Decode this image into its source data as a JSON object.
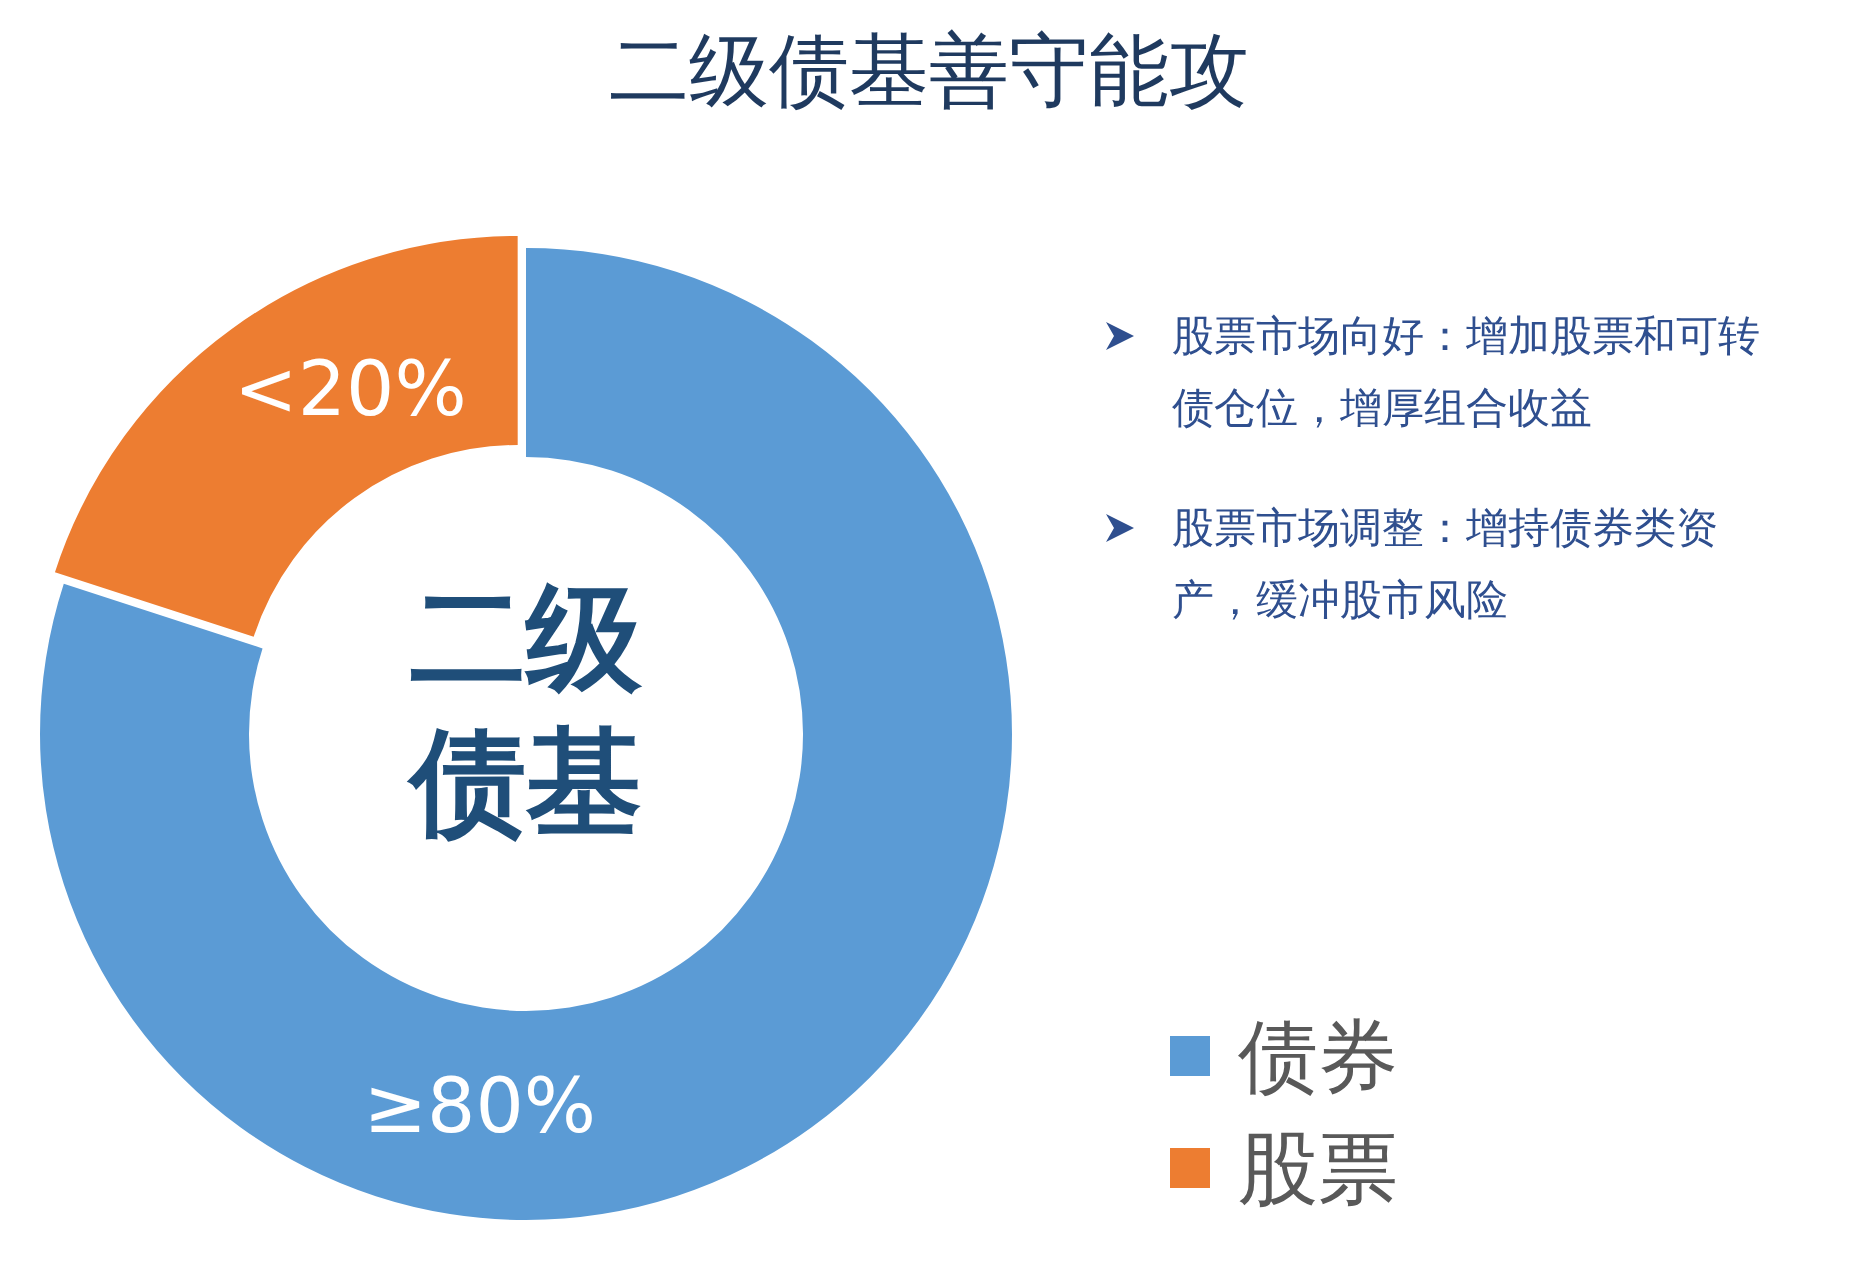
{
  "chart_data": {
    "type": "donut",
    "title": "二级债基善守能攻",
    "categories": [
      "债券",
      "股票"
    ],
    "values": [
      80,
      20
    ],
    "colors": [
      "#5b9bd5",
      "#ed7d31"
    ],
    "value_labels": [
      "≥80%",
      "<20%"
    ],
    "legend": "bottom right",
    "annotations": [
      "二级债基",
      "股票市场向好：增加股票和可转债仓位，增厚组合收益",
      "股票市场调整：增持债券类资产，缓冲股市风险"
    ]
  }
}
